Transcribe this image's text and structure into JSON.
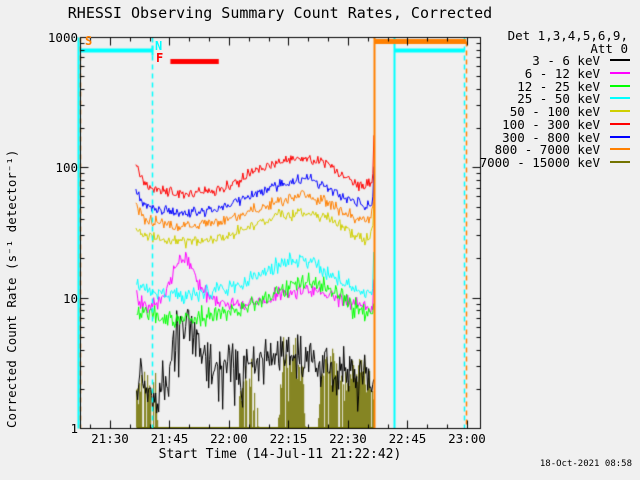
{
  "window": {
    "bg": "#f0f0f0",
    "fg": "#000000"
  },
  "chart": {
    "title": "RHESSI Observing Summary Count Rates, Corrected",
    "xlabel": "Start Time (14-Jul-11 21:22:42)",
    "ylabel": "Corrected Count Rate (s⁻¹ detector⁻¹)",
    "timestamp": "18-Oct-2021 08:58",
    "legend": {
      "det": "Det 1,3,4,5,6,9,",
      "att": "Att 0",
      "entries": [
        {
          "label": "3 - 6 keV",
          "color": "#000000"
        },
        {
          "label": "6 - 12 keV",
          "color": "#ff00ff"
        },
        {
          "label": "12 - 25 keV",
          "color": "#00ff00"
        },
        {
          "label": "25 - 50 keV",
          "color": "#00ffff"
        },
        {
          "label": "50 - 100 keV",
          "color": "#cfcf00"
        },
        {
          "label": "100 - 300 keV",
          "color": "#ff0000"
        },
        {
          "label": "300 - 800 keV",
          "color": "#0000ff"
        },
        {
          "label": "800 - 7000 keV",
          "color": "#ff8000"
        },
        {
          "label": "7000 - 15000 keV",
          "color": "#737300"
        }
      ]
    },
    "chart_data": {
      "type": "line",
      "y_scale": "log",
      "ylim": [
        1,
        1000
      ],
      "x_ticks": [
        {
          "label": "21:30",
          "t": 7.3
        },
        {
          "label": "21:45",
          "t": 22.3
        },
        {
          "label": "22:00",
          "t": 37.3
        },
        {
          "label": "22:15",
          "t": 52.3
        },
        {
          "label": "22:30",
          "t": 67.3
        },
        {
          "label": "22:45",
          "t": 82.3
        },
        {
          "label": "23:00",
          "t": 97.3
        }
      ],
      "minor_tick_first": 2.3,
      "minor_tick_step": 5,
      "y_ticks": [
        {
          "label": "1000",
          "v": 1000
        },
        {
          "label": "100",
          "v": 100
        },
        {
          "label": "10",
          "v": 10
        },
        {
          "label": "1",
          "v": 1
        }
      ],
      "flags": [
        {
          "label": "S",
          "color": "#ff8000",
          "x": 85,
          "y": 36
        },
        {
          "label": "N",
          "color": "#00ffff",
          "x": 155,
          "y": 41
        },
        {
          "label": "F",
          "color": "#ff0000",
          "x": 156,
          "y": 53
        }
      ],
      "vlines": [
        {
          "t": -0.75,
          "color": "#00ffff",
          "dash": false
        },
        {
          "t": -0.15,
          "color": "#ff8000",
          "dash": true,
          "offset": 0
        },
        {
          "t": 17.9,
          "color": "#00ffff",
          "dash": true,
          "offset": 0
        },
        {
          "t": 73.85,
          "color": "#ff8000",
          "dash": false
        },
        {
          "t": 78.9,
          "color": "#00ffff",
          "dash": false
        },
        {
          "t": 96.6,
          "color": "#00ffff",
          "dash": true,
          "offset": 0
        },
        {
          "t": 97.05,
          "color": "#ff8000",
          "dash": true,
          "offset": 5
        }
      ],
      "hbars": [
        {
          "t1": -0.5,
          "t2": 17.9,
          "v": 790,
          "color": "#00ffff",
          "h": 4,
          "endcap": true
        },
        {
          "t1": 22.4,
          "t2": 34.6,
          "v": 660,
          "color": "#ff0000",
          "h": 5,
          "endcap": false
        },
        {
          "t1": 73.85,
          "t2": 97.0,
          "v": 930,
          "color": "#ff8000",
          "h": 5,
          "endcap": false
        },
        {
          "t1": 78.9,
          "t2": 96.6,
          "v": 790,
          "color": "#00ffff",
          "h": 4,
          "endcap": false
        }
      ],
      "series": [
        {
          "name": "7000 - 15000 keV",
          "color": "#737300",
          "mode": "columns",
          "sigma": 0.1,
          "anchors": [
            [
              13.9,
              2.3
            ],
            [
              16,
              2.5
            ],
            [
              18.5,
              2.1
            ],
            [
              19.4,
              1.0
            ],
            [
              39.3,
              1.0
            ],
            [
              40,
              2.1
            ],
            [
              43,
              2.3
            ],
            [
              44.8,
              1.0
            ],
            [
              49.5,
              1.0
            ],
            [
              50.5,
              2.8
            ],
            [
              53,
              3.2
            ],
            [
              55.5,
              2.6
            ],
            [
              57,
              1.0
            ],
            [
              59.5,
              1.0
            ],
            [
              60.5,
              2.9
            ],
            [
              63,
              3.2
            ],
            [
              66,
              2.7
            ],
            [
              68,
              2.5
            ],
            [
              70,
              2.9
            ],
            [
              72,
              2.5
            ],
            [
              73.75,
              2.2
            ]
          ]
        },
        {
          "name": "3 - 6 keV",
          "color": "#000000",
          "mode": "line",
          "sigma": 0.09,
          "drops": true,
          "anchors": [
            [
              13.9,
              2.4
            ],
            [
              16,
              2.3
            ],
            [
              18,
              2.1
            ],
            [
              20,
              2.0
            ],
            [
              21.5,
              2.2
            ],
            [
              22.5,
              3.6
            ],
            [
              23.5,
              5.2
            ],
            [
              25,
              6.2
            ],
            [
              27,
              6.4
            ],
            [
              28.5,
              5.6
            ],
            [
              29.5,
              4.2
            ],
            [
              31,
              3.5
            ],
            [
              33,
              3.0
            ],
            [
              35,
              2.8
            ],
            [
              37,
              3.1
            ],
            [
              39,
              3.2
            ],
            [
              41,
              2.9
            ],
            [
              44,
              3.4
            ],
            [
              47,
              3.6
            ],
            [
              50,
              3.6
            ],
            [
              53,
              3.7
            ],
            [
              56,
              3.5
            ],
            [
              58,
              3.4
            ],
            [
              60,
              3.1
            ],
            [
              62,
              3.0
            ],
            [
              64,
              2.9
            ],
            [
              66,
              2.8
            ],
            [
              68,
              2.6
            ],
            [
              70,
              2.4
            ],
            [
              72,
              2.2
            ],
            [
              73.75,
              2.1
            ]
          ]
        },
        {
          "name": "6 - 12 keV",
          "color": "#ff00ff",
          "mode": "line",
          "sigma": 0.03,
          "anchors": [
            [
              13.9,
              10.5
            ],
            [
              15,
              9.2
            ],
            [
              18,
              9.0
            ],
            [
              21,
              10
            ],
            [
              23,
              15
            ],
            [
              24.5,
              20
            ],
            [
              26,
              21
            ],
            [
              27.5,
              18
            ],
            [
              29,
              14
            ],
            [
              31,
              11.5
            ],
            [
              33,
              10
            ],
            [
              35,
              9.2
            ],
            [
              38,
              8.7
            ],
            [
              42,
              8.9
            ],
            [
              48,
              10
            ],
            [
              52,
              11
            ],
            [
              56,
              11.5
            ],
            [
              60,
              11
            ],
            [
              64,
              10
            ],
            [
              68,
              9.2
            ],
            [
              71,
              8.6
            ],
            [
              73.4,
              8.4
            ],
            [
              73.75,
              15
            ]
          ]
        },
        {
          "name": "12 - 25 keV",
          "color": "#00ff00",
          "mode": "line",
          "sigma": 0.035,
          "anchors": [
            [
              13.9,
              8.2
            ],
            [
              15,
              7.6
            ],
            [
              18,
              7.3
            ],
            [
              22,
              7.0
            ],
            [
              26,
              6.9
            ],
            [
              30,
              7.0
            ],
            [
              34,
              7.3
            ],
            [
              38,
              7.7
            ],
            [
              42,
              8.5
            ],
            [
              47,
              10.5
            ],
            [
              51,
              12
            ],
            [
              54,
              13
            ],
            [
              57,
              13
            ],
            [
              60,
              12.5
            ],
            [
              63,
              11
            ],
            [
              66,
              9.6
            ],
            [
              69,
              8.3
            ],
            [
              72,
              7.6
            ],
            [
              73.4,
              7.5
            ],
            [
              73.75,
              10
            ]
          ]
        },
        {
          "name": "25 - 50 keV",
          "color": "#00ffff",
          "mode": "line",
          "sigma": 0.03,
          "anchors": [
            [
              13.9,
              14.5
            ],
            [
              14.5,
              12.6
            ],
            [
              17,
              11.6
            ],
            [
              21,
              11
            ],
            [
              26,
              10.6
            ],
            [
              31,
              10.9
            ],
            [
              36,
              11.6
            ],
            [
              42,
              13.5
            ],
            [
              48,
              17
            ],
            [
              52,
              19.5
            ],
            [
              55,
              20
            ],
            [
              58,
              19
            ],
            [
              62,
              16
            ],
            [
              66,
              13.2
            ],
            [
              70,
              11.2
            ],
            [
              73.2,
              10.6
            ],
            [
              73.75,
              25
            ]
          ]
        },
        {
          "name": "50 - 100 keV",
          "color": "#cfcf00",
          "mode": "line",
          "sigma": 0.022,
          "anchors": [
            [
              13.7,
              36
            ],
            [
              14.3,
              33
            ],
            [
              16,
              30
            ],
            [
              19,
              28.5
            ],
            [
              24,
              27
            ],
            [
              30,
              27
            ],
            [
              36,
              29
            ],
            [
              44,
              37
            ],
            [
              50,
              43
            ],
            [
              54,
              46
            ],
            [
              57,
              47
            ],
            [
              62,
              42
            ],
            [
              66,
              35
            ],
            [
              70,
              29.5
            ],
            [
              72.5,
              28.5
            ],
            [
              73.4,
              33
            ],
            [
              73.75,
              58
            ]
          ]
        },
        {
          "name": "800 - 7000 keV",
          "color": "#ff8000",
          "mode": "line",
          "sigma": 0.022,
          "anchors": [
            [
              13.7,
              52
            ],
            [
              14.3,
              48
            ],
            [
              16,
              41
            ],
            [
              19,
              38.5
            ],
            [
              24,
              36
            ],
            [
              30,
              36.5
            ],
            [
              36,
              39
            ],
            [
              44,
              48
            ],
            [
              50,
              56
            ],
            [
              54,
              60
            ],
            [
              57,
              61
            ],
            [
              62,
              55
            ],
            [
              66,
              46
            ],
            [
              70,
              40
            ],
            [
              72.5,
              39
            ],
            [
              73.4,
              46
            ],
            [
              73.75,
              85
            ]
          ]
        },
        {
          "name": "300 - 800 keV",
          "color": "#0000ff",
          "mode": "line",
          "sigma": 0.02,
          "anchors": [
            [
              13.7,
              68
            ],
            [
              14.3,
              62
            ],
            [
              16,
              52
            ],
            [
              19,
              48.5
            ],
            [
              24,
              45.5
            ],
            [
              30,
              46
            ],
            [
              36,
              50
            ],
            [
              44,
              63
            ],
            [
              50,
              74
            ],
            [
              54,
              79
            ],
            [
              57,
              80
            ],
            [
              62,
              72
            ],
            [
              66,
              60
            ],
            [
              70,
              52.5
            ],
            [
              72.5,
              51.5
            ],
            [
              73.4,
              58
            ],
            [
              73.75,
              108
            ]
          ]
        },
        {
          "name": "100 - 300 keV",
          "color": "#ff0000",
          "mode": "line",
          "sigma": 0.02,
          "anchors": [
            [
              13.7,
              105
            ],
            [
              14.3,
              95
            ],
            [
              16,
              74
            ],
            [
              19,
              67
            ],
            [
              24,
              64
            ],
            [
              30,
              64.5
            ],
            [
              36,
              70
            ],
            [
              44,
              95
            ],
            [
              50,
              112
            ],
            [
              54,
              118
            ],
            [
              57,
              120
            ],
            [
              62,
              106
            ],
            [
              66,
              86
            ],
            [
              70,
              75
            ],
            [
              72.5,
              74
            ],
            [
              73.4,
              85
            ],
            [
              73.75,
              215
            ]
          ]
        }
      ]
    }
  }
}
